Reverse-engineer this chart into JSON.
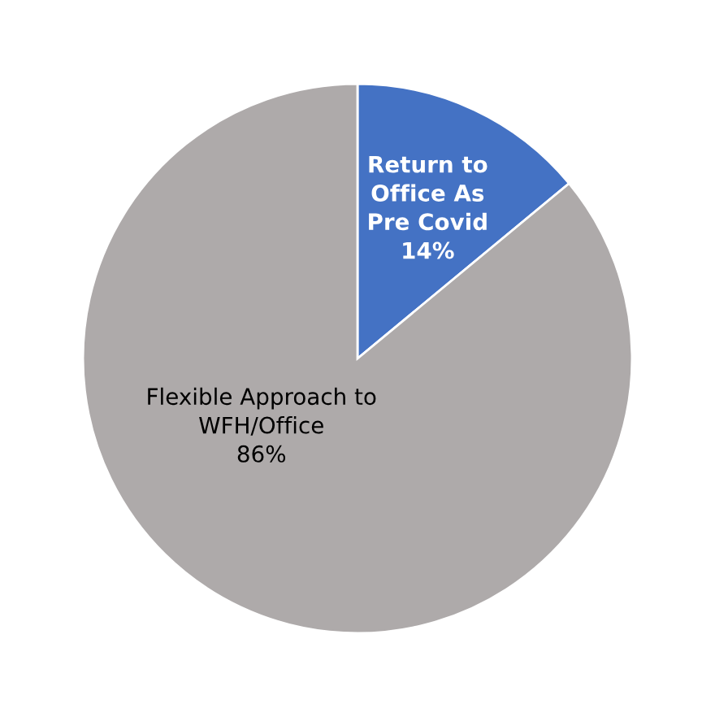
{
  "chart_data": {
    "type": "pie",
    "categories": [
      "Return to\nOffice As\nPre Covid",
      "Flexible Approach to\nWFH/Office"
    ],
    "values": [
      14,
      86
    ],
    "value_labels": [
      "14%",
      "86%"
    ],
    "colors": [
      "#4472c4",
      "#aeaaaa"
    ]
  }
}
